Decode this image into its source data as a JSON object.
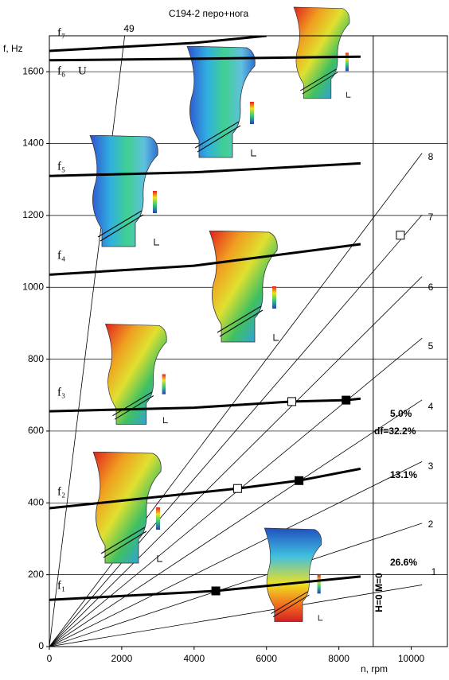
{
  "chart_data": {
    "type": "campbell",
    "title": "C194-2 перо+нога",
    "y_label": "f, Hz",
    "x_label": "n, rpm",
    "xlim": [
      0,
      11000
    ],
    "ylim": [
      0,
      1700
    ],
    "xticks": [
      0,
      2000,
      4000,
      6000,
      8000,
      10000
    ],
    "yticks": [
      0,
      200,
      400,
      600,
      800,
      1000,
      1200,
      1400,
      1600
    ],
    "grid": true,
    "reference_x": 8950,
    "series": [
      {
        "name": "f₁",
        "color": "#000000",
        "x": [
          0,
          4600,
          8600
        ],
        "values": [
          130,
          155,
          195
        ]
      },
      {
        "name": "f₂",
        "color": "#000000",
        "x": [
          0,
          5200,
          6900,
          8600
        ],
        "values": [
          385,
          440,
          462,
          495
        ]
      },
      {
        "name": "f₃",
        "color": "#000000",
        "x": [
          0,
          4000,
          6700,
          8200,
          8600
        ],
        "values": [
          655,
          665,
          682,
          686,
          690
        ]
      },
      {
        "name": "f₄",
        "color": "#000000",
        "x": [
          0,
          4000,
          8600
        ],
        "values": [
          1035,
          1060,
          1120
        ]
      },
      {
        "name": "f₅",
        "color": "#000000",
        "x": [
          0,
          4000,
          8600
        ],
        "values": [
          1310,
          1320,
          1345
        ]
      },
      {
        "name": "f₆",
        "color": "#000000",
        "x": [
          0,
          4000,
          8600
        ],
        "values": [
          1632,
          1636,
          1642
        ]
      },
      {
        "name": "f₇",
        "color": "#000000",
        "x": [
          0,
          4000,
          6000
        ],
        "values": [
          1658,
          1680,
          1700
        ]
      }
    ],
    "mode_label": "U",
    "orders": [
      1,
      2,
      3,
      4,
      5,
      6,
      7,
      8,
      49
    ],
    "markers": [
      {
        "x": 4600,
        "y": 155,
        "filled": true
      },
      {
        "x": 6900,
        "y": 462,
        "filled": true
      },
      {
        "x": 8200,
        "y": 686,
        "filled": true
      },
      {
        "x": 5200,
        "y": 440,
        "filled": false
      },
      {
        "x": 6700,
        "y": 682,
        "filled": false
      },
      {
        "x": 9700,
        "y": 1145,
        "filled": false
      }
    ],
    "annotations": [
      "26.6%",
      "13.1%",
      "df=32.2%",
      "5.0%",
      "H=0 M=0"
    ]
  }
}
